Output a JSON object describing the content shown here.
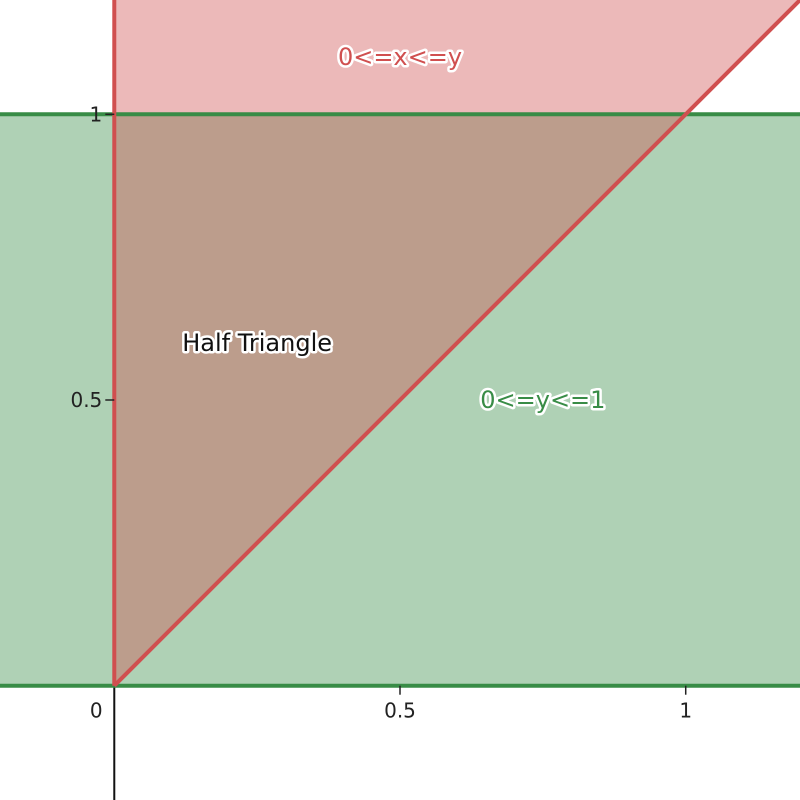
{
  "chart_data": {
    "type": "area",
    "x_range": [
      -0.2,
      1.2
    ],
    "y_range": [
      -0.2,
      1.2
    ],
    "grid": false,
    "x_ticks": [
      {
        "value": 0,
        "label": "0"
      },
      {
        "value": 0.5,
        "label": "0.5"
      },
      {
        "value": 1,
        "label": "1"
      }
    ],
    "y_ticks": [
      {
        "value": 0.5,
        "label": "0.5"
      },
      {
        "value": 1,
        "label": "1"
      }
    ],
    "regions": [
      {
        "name": "horizontal-band",
        "inequality": "0<=y<=1",
        "color": "#388c46",
        "fill_opacity": 0.4,
        "boundary_lines": [
          {
            "y": 0
          },
          {
            "y": 1
          }
        ]
      },
      {
        "name": "wedge",
        "inequality": "0<=x<=y",
        "color": "#d04f4f",
        "fill_opacity": 0.4,
        "boundary_lines": [
          {
            "x": 0
          },
          {
            "y_equals": "x"
          }
        ]
      }
    ],
    "labels": [
      {
        "text": "0<=x<=y",
        "x": 0.5,
        "y": 1.1,
        "color": "#d04f4f"
      },
      {
        "text": "Half Triangle",
        "x": 0.25,
        "y": 0.6,
        "color": "#111111"
      },
      {
        "text": "0<=y<=1",
        "x": 0.75,
        "y": 0.5,
        "color": "#388c46"
      }
    ]
  }
}
